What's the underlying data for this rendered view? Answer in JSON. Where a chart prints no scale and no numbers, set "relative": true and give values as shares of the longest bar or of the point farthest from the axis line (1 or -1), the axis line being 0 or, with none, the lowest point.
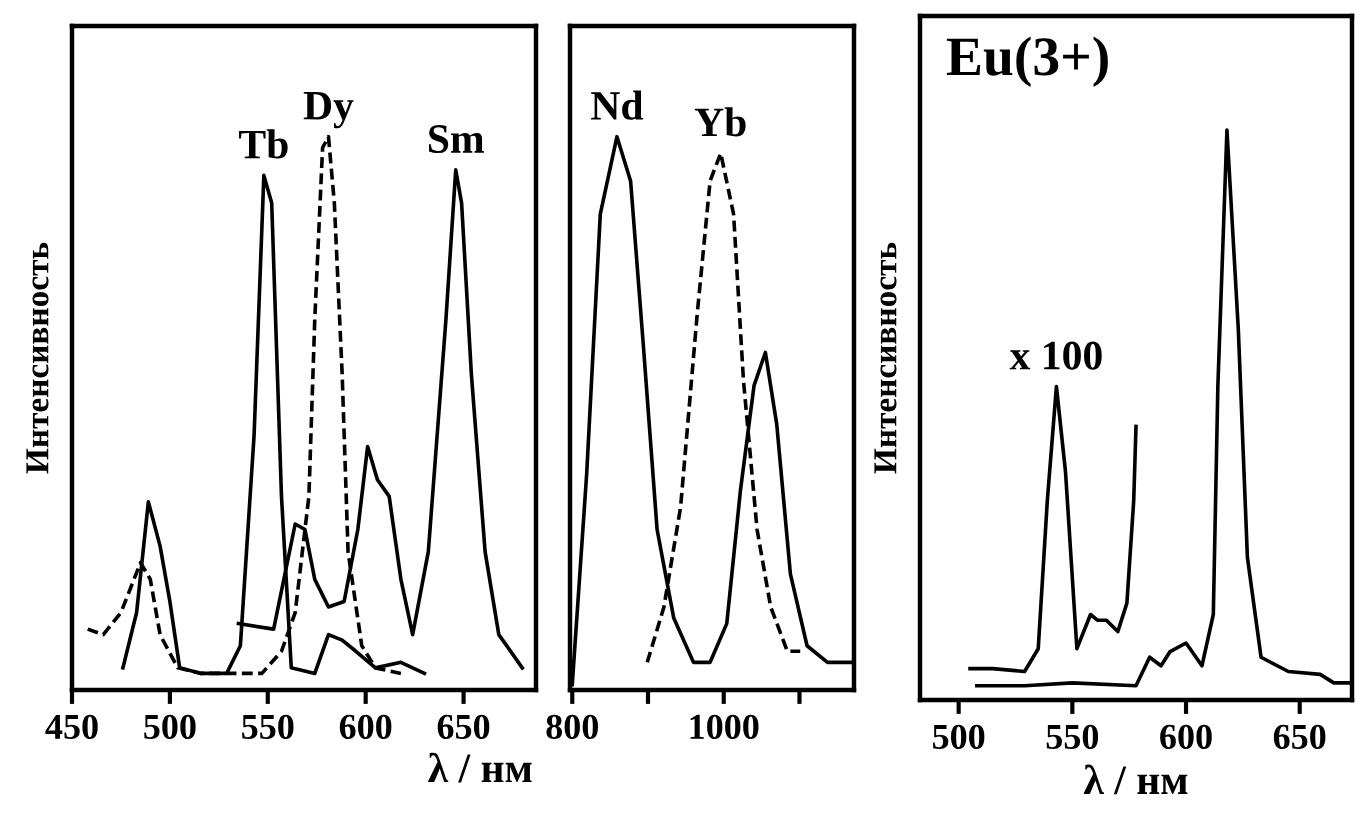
{
  "chart_data": [
    {
      "type": "line",
      "relative": true,
      "xlabel": "λ / нм",
      "ylabel": "Интенсивность",
      "xlim": [
        450,
        687
      ],
      "xticks": [
        450,
        500,
        550,
        600,
        650
      ],
      "tick_labels": "x",
      "grid": false,
      "legend": false,
      "marker": "none",
      "series": [
        {
          "name": "Tb",
          "color": "#000000",
          "line_style": "solid",
          "x": [
            476,
            483,
            489,
            495,
            500,
            505,
            516,
            529,
            536,
            543,
            548,
            552,
            557,
            562,
            574,
            581,
            588,
            595,
            605,
            618,
            630
          ],
          "values": [
            0.04,
            0.14,
            0.34,
            0.26,
            0.16,
            0.04,
            0.03,
            0.03,
            0.08,
            0.46,
            0.93,
            0.88,
            0.35,
            0.04,
            0.03,
            0.1,
            0.09,
            0.07,
            0.04,
            0.05,
            0.03
          ]
        },
        {
          "name": "Dy",
          "color": "#000000",
          "line_style": "dashed",
          "x": [
            458,
            466,
            475,
            485,
            490,
            495,
            504,
            516,
            533,
            547,
            557,
            564,
            571,
            574,
            578,
            581,
            584,
            588,
            591,
            598,
            605,
            618
          ],
          "values": [
            0.11,
            0.1,
            0.14,
            0.23,
            0.2,
            0.1,
            0.04,
            0.03,
            0.03,
            0.03,
            0.07,
            0.14,
            0.35,
            0.67,
            0.98,
            1.0,
            0.88,
            0.57,
            0.25,
            0.08,
            0.04,
            0.03
          ]
        },
        {
          "name": "Sm",
          "color": "#000000",
          "line_style": "solid",
          "x": [
            535,
            553,
            564,
            569,
            574,
            581,
            589,
            596,
            601,
            606,
            612,
            618,
            624,
            632,
            641,
            646,
            649,
            654,
            661,
            668,
            680
          ],
          "values": [
            0.12,
            0.11,
            0.3,
            0.29,
            0.2,
            0.15,
            0.16,
            0.29,
            0.44,
            0.38,
            0.35,
            0.2,
            0.1,
            0.25,
            0.67,
            0.94,
            0.88,
            0.57,
            0.25,
            0.1,
            0.04
          ]
        }
      ]
    },
    {
      "type": "line",
      "relative": true,
      "xlim": [
        797,
        1172
      ],
      "xticks": [
        800,
        {
          "value": 900,
          "label": null
        },
        1000,
        {
          "value": 1100,
          "label": null
        }
      ],
      "tick_labels": "x",
      "grid": false,
      "legend": false,
      "marker": "none",
      "series": [
        {
          "name": "Nd",
          "color": "#000000",
          "line_style": "solid",
          "x": [
            800,
            819,
            837,
            859,
            877,
            894,
            912,
            934,
            960,
            982,
            1004,
            1022,
            1040,
            1055,
            1070,
            1088,
            1110,
            1137,
            1167
          ],
          "values": [
            0.01,
            0.39,
            0.86,
            1.0,
            0.92,
            0.62,
            0.29,
            0.13,
            0.05,
            0.05,
            0.12,
            0.36,
            0.55,
            0.61,
            0.48,
            0.21,
            0.08,
            0.05,
            0.05
          ]
        },
        {
          "name": "Yb",
          "color": "#000000",
          "line_style": "dashed",
          "x": [
            899,
            921,
            943,
            965,
            982,
            996,
            1013,
            1026,
            1044,
            1062,
            1084,
            1101
          ],
          "values": [
            0.05,
            0.15,
            0.33,
            0.68,
            0.92,
            0.97,
            0.86,
            0.56,
            0.29,
            0.15,
            0.07,
            0.07
          ]
        }
      ]
    },
    {
      "type": "line",
      "relative": true,
      "title": "Eu(3+)",
      "xlabel": "λ / нм",
      "ylabel": "Интенсивность",
      "xlim": [
        483,
        673
      ],
      "xticks": [
        500,
        550,
        600,
        650
      ],
      "tick_labels": "x",
      "grid": false,
      "legend": false,
      "marker": "none",
      "series": [
        {
          "color": "#000000",
          "line_style": "solid",
          "x": [
            508,
            529,
            550,
            578,
            584,
            589,
            593,
            600,
            607,
            612,
            614,
            618,
            623,
            627,
            633,
            645,
            659,
            665,
            673
          ],
          "values": [
            0.025,
            0.025,
            0.03,
            0.025,
            0.075,
            0.06,
            0.085,
            0.1,
            0.06,
            0.15,
            0.55,
            1.0,
            0.65,
            0.25,
            0.075,
            0.05,
            0.045,
            0.03,
            0.03
          ]
        },
        {
          "name": "x 100",
          "color": "#000000",
          "line_style": "solid",
          "x": [
            505,
            515,
            529,
            535,
            539,
            543,
            547,
            552,
            558,
            561,
            565,
            570,
            574,
            577,
            578
          ],
          "values": [
            0.055,
            0.055,
            0.05,
            0.09,
            0.35,
            0.55,
            0.4,
            0.09,
            0.15,
            0.14,
            0.14,
            0.12,
            0.17,
            0.35,
            0.48
          ]
        }
      ]
    }
  ]
}
